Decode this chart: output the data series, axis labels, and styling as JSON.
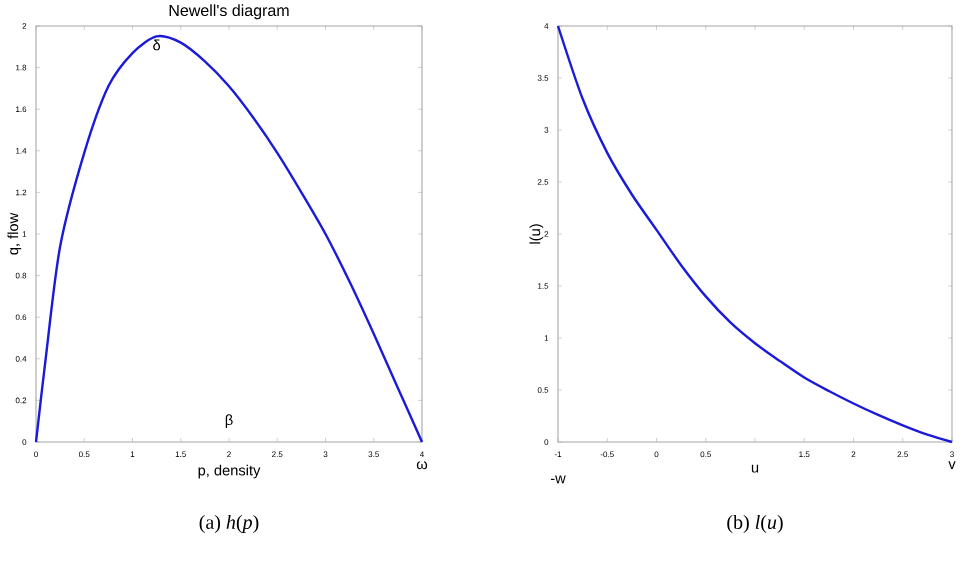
{
  "chart_data": [
    {
      "type": "line",
      "title": "Newell's diagram",
      "xlabel": "p, density",
      "ylabel": "q, flow",
      "x": [
        0,
        0.1,
        0.25,
        0.5,
        0.75,
        1,
        1.25,
        1.5,
        1.75,
        2,
        2.25,
        2.5,
        2.75,
        3,
        3.25,
        3.5,
        3.75,
        4
      ],
      "values": [
        0,
        0.4,
        0.94,
        1.39,
        1.71,
        1.87,
        1.95,
        1.92,
        1.83,
        1.71,
        1.56,
        1.39,
        1.2,
        1.0,
        0.77,
        0.52,
        0.26,
        0
      ],
      "color": "#1a1adb",
      "xlim": [
        0,
        4
      ],
      "ylim": [
        0,
        2
      ],
      "xticks": [
        0,
        0.5,
        1,
        1.5,
        2,
        2.5,
        3,
        3.5,
        4
      ],
      "yticks": [
        0,
        0.2,
        0.4,
        0.6,
        0.8,
        1,
        1.2,
        1.4,
        1.6,
        1.8,
        2
      ],
      "annotations": [
        {
          "text": "δ",
          "x": 1.25,
          "y": 1.95
        },
        "β",
        {
          "text": "ω",
          "x": 4,
          "y": 0
        },
        "(a) *h*(*p*)"
      ]
    },
    {
      "type": "line",
      "xlabel": "u",
      "ylabel": "l(u)",
      "x": [
        -1,
        -0.75,
        -0.5,
        -0.25,
        0,
        0.25,
        0.5,
        0.75,
        1,
        1.25,
        1.5,
        1.75,
        2,
        2.25,
        2.5,
        2.75,
        3
      ],
      "values": [
        4,
        3.3,
        2.78,
        2.38,
        2.04,
        1.7,
        1.4,
        1.15,
        0.95,
        0.78,
        0.62,
        0.49,
        0.37,
        0.26,
        0.16,
        0.07,
        0
      ],
      "color": "#1a1adb",
      "xlim": [
        -1,
        3
      ],
      "ylim": [
        0,
        4
      ],
      "xticks": [
        -1,
        -0.5,
        0,
        0.5,
        {
          "value": 1,
          "label": null
        },
        1.5,
        2,
        2.5,
        3
      ],
      "yticks": [
        0,
        0.5,
        1,
        1.5,
        2,
        2.5,
        3,
        3.5,
        4
      ],
      "annotations": [
        "-w",
        {
          "text": "v",
          "x": 3,
          "y": 0
        },
        "(b) *l*(*u*)"
      ]
    }
  ]
}
